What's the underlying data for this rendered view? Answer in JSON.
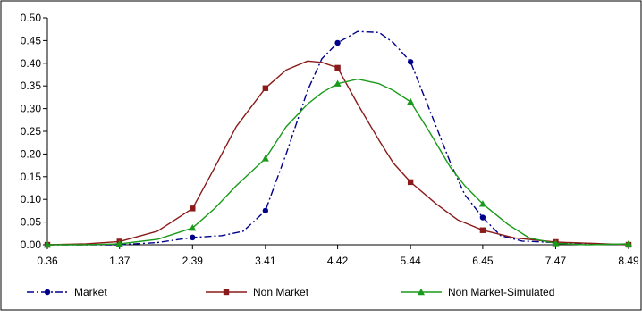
{
  "chart_data": {
    "type": "line",
    "x_ticks": [
      "0.36",
      "1.37",
      "2.39",
      "3.41",
      "4.42",
      "5.44",
      "6.45",
      "7.47",
      "8.49"
    ],
    "y_ticks": [
      "0.00",
      "0.05",
      "0.10",
      "0.15",
      "0.20",
      "0.25",
      "0.30",
      "0.35",
      "0.40",
      "0.45",
      "0.50"
    ],
    "xlim": [
      0.36,
      8.49
    ],
    "ylim": [
      0,
      0.5
    ],
    "grid": false,
    "legend_position": "bottom",
    "series": [
      {
        "name": "Market",
        "color": "#00008b",
        "line_style": "dash-dot",
        "marker": "circle",
        "markers": [
          [
            0.36,
            0.0
          ],
          [
            1.37,
            0.0
          ],
          [
            2.39,
            0.016
          ],
          [
            3.41,
            0.075
          ],
          [
            4.42,
            0.445
          ],
          [
            5.44,
            0.403
          ],
          [
            6.45,
            0.06
          ],
          [
            7.47,
            0.005
          ],
          [
            8.49,
            0.0
          ]
        ],
        "curve": [
          [
            0.36,
            0.0
          ],
          [
            0.9,
            0.0
          ],
          [
            1.37,
            0.0
          ],
          [
            1.9,
            0.005
          ],
          [
            2.39,
            0.016
          ],
          [
            2.8,
            0.02
          ],
          [
            3.1,
            0.03
          ],
          [
            3.41,
            0.075
          ],
          [
            3.7,
            0.2
          ],
          [
            4.0,
            0.34
          ],
          [
            4.2,
            0.41
          ],
          [
            4.42,
            0.445
          ],
          [
            4.7,
            0.47
          ],
          [
            5.0,
            0.468
          ],
          [
            5.2,
            0.445
          ],
          [
            5.44,
            0.403
          ],
          [
            5.7,
            0.3
          ],
          [
            6.0,
            0.18
          ],
          [
            6.2,
            0.11
          ],
          [
            6.45,
            0.06
          ],
          [
            6.7,
            0.02
          ],
          [
            7.0,
            0.008
          ],
          [
            7.47,
            0.005
          ],
          [
            8.0,
            0.002
          ],
          [
            8.49,
            0.0
          ]
        ]
      },
      {
        "name": "Non Market",
        "color": "#8b1a1a",
        "line_style": "solid",
        "marker": "square",
        "markers": [
          [
            0.36,
            0.0
          ],
          [
            1.37,
            0.007
          ],
          [
            2.39,
            0.08
          ],
          [
            3.41,
            0.345
          ],
          [
            4.42,
            0.39
          ],
          [
            5.44,
            0.138
          ],
          [
            6.45,
            0.032
          ],
          [
            7.47,
            0.006
          ],
          [
            8.49,
            0.0
          ]
        ],
        "curve": [
          [
            0.36,
            0.0
          ],
          [
            0.9,
            0.002
          ],
          [
            1.37,
            0.007
          ],
          [
            1.9,
            0.03
          ],
          [
            2.39,
            0.08
          ],
          [
            2.7,
            0.17
          ],
          [
            3.0,
            0.26
          ],
          [
            3.41,
            0.345
          ],
          [
            3.7,
            0.385
          ],
          [
            4.0,
            0.405
          ],
          [
            4.2,
            0.402
          ],
          [
            4.42,
            0.39
          ],
          [
            4.7,
            0.31
          ],
          [
            5.0,
            0.23
          ],
          [
            5.2,
            0.18
          ],
          [
            5.44,
            0.138
          ],
          [
            5.8,
            0.09
          ],
          [
            6.1,
            0.055
          ],
          [
            6.45,
            0.032
          ],
          [
            6.9,
            0.015
          ],
          [
            7.47,
            0.006
          ],
          [
            8.0,
            0.003
          ],
          [
            8.49,
            0.0
          ]
        ]
      },
      {
        "name": "Non Market-Simulated",
        "color": "#1a9a1a",
        "line_style": "solid",
        "marker": "triangle",
        "markers": [
          [
            0.36,
            0.0
          ],
          [
            1.37,
            0.002
          ],
          [
            2.39,
            0.037
          ],
          [
            3.41,
            0.19
          ],
          [
            4.42,
            0.355
          ],
          [
            5.44,
            0.315
          ],
          [
            6.45,
            0.09
          ],
          [
            7.47,
            0.003
          ],
          [
            8.49,
            0.002
          ]
        ],
        "curve": [
          [
            0.36,
            0.0
          ],
          [
            0.9,
            0.0
          ],
          [
            1.37,
            0.002
          ],
          [
            1.9,
            0.012
          ],
          [
            2.39,
            0.037
          ],
          [
            2.7,
            0.08
          ],
          [
            3.0,
            0.13
          ],
          [
            3.41,
            0.19
          ],
          [
            3.7,
            0.26
          ],
          [
            4.0,
            0.31
          ],
          [
            4.2,
            0.335
          ],
          [
            4.42,
            0.355
          ],
          [
            4.7,
            0.365
          ],
          [
            5.0,
            0.355
          ],
          [
            5.2,
            0.34
          ],
          [
            5.44,
            0.315
          ],
          [
            5.7,
            0.25
          ],
          [
            6.0,
            0.17
          ],
          [
            6.2,
            0.13
          ],
          [
            6.45,
            0.09
          ],
          [
            6.8,
            0.045
          ],
          [
            7.1,
            0.015
          ],
          [
            7.47,
            0.003
          ],
          [
            7.9,
            0.0
          ],
          [
            8.49,
            0.002
          ]
        ]
      }
    ]
  }
}
